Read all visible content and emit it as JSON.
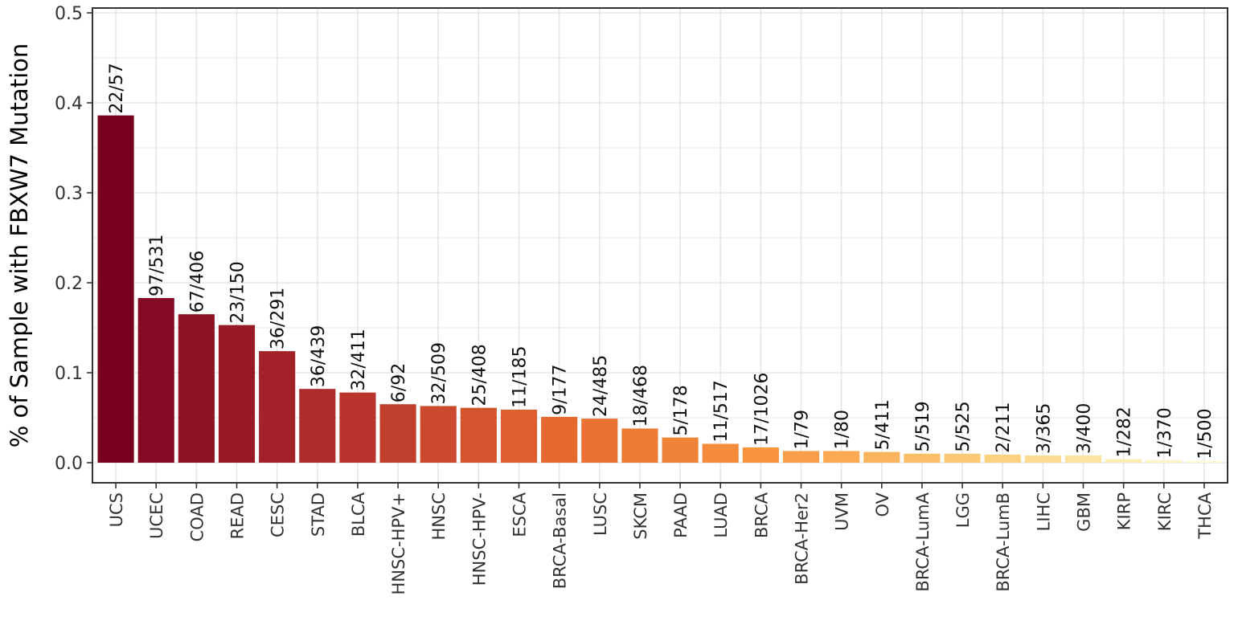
{
  "chart_data": {
    "type": "bar",
    "title": "",
    "xlabel": "",
    "ylabel": "% of Sample with FBXW7 Mutation",
    "ylim": [
      0,
      0.5
    ],
    "y_ticks": [
      "0.0",
      "0.1",
      "0.2",
      "0.3",
      "0.4",
      "0.5"
    ],
    "grid": true,
    "legend": "none",
    "color_scale": [
      "#7a0020",
      "#b22e2c",
      "#e5682e",
      "#fa9640",
      "#fccf7a",
      "#fefcd3"
    ],
    "categories": [
      "UCS",
      "UCEC",
      "COAD",
      "READ",
      "CESC",
      "STAD",
      "BLCA",
      "HNSC-HPV+",
      "HNSC",
      "HNSC-HPV-",
      "ESCA",
      "BRCA-Basal",
      "LUSC",
      "SKCM",
      "PAAD",
      "LUAD",
      "BRCA",
      "BRCA-Her2",
      "UVM",
      "OV",
      "BRCA-LumA",
      "LGG",
      "BRCA-LumB",
      "LIHC",
      "GBM",
      "KIRP",
      "KIRC",
      "THCA"
    ],
    "values": [
      0.386,
      0.183,
      0.165,
      0.153,
      0.124,
      0.082,
      0.078,
      0.065,
      0.063,
      0.061,
      0.059,
      0.051,
      0.049,
      0.038,
      0.028,
      0.021,
      0.017,
      0.013,
      0.013,
      0.012,
      0.01,
      0.01,
      0.009,
      0.008,
      0.008,
      0.004,
      0.003,
      0.002
    ],
    "data_labels": [
      "22/57",
      "97/531",
      "67/406",
      "23/150",
      "36/291",
      "36/439",
      "32/411",
      "6/92",
      "32/509",
      "25/408",
      "11/185",
      "9/177",
      "24/485",
      "18/468",
      "5/178",
      "11/517",
      "17/1026",
      "1/79",
      "1/80",
      "5/411",
      "5/519",
      "5/525",
      "2/211",
      "3/365",
      "3/400",
      "1/282",
      "1/370",
      "1/500"
    ]
  }
}
